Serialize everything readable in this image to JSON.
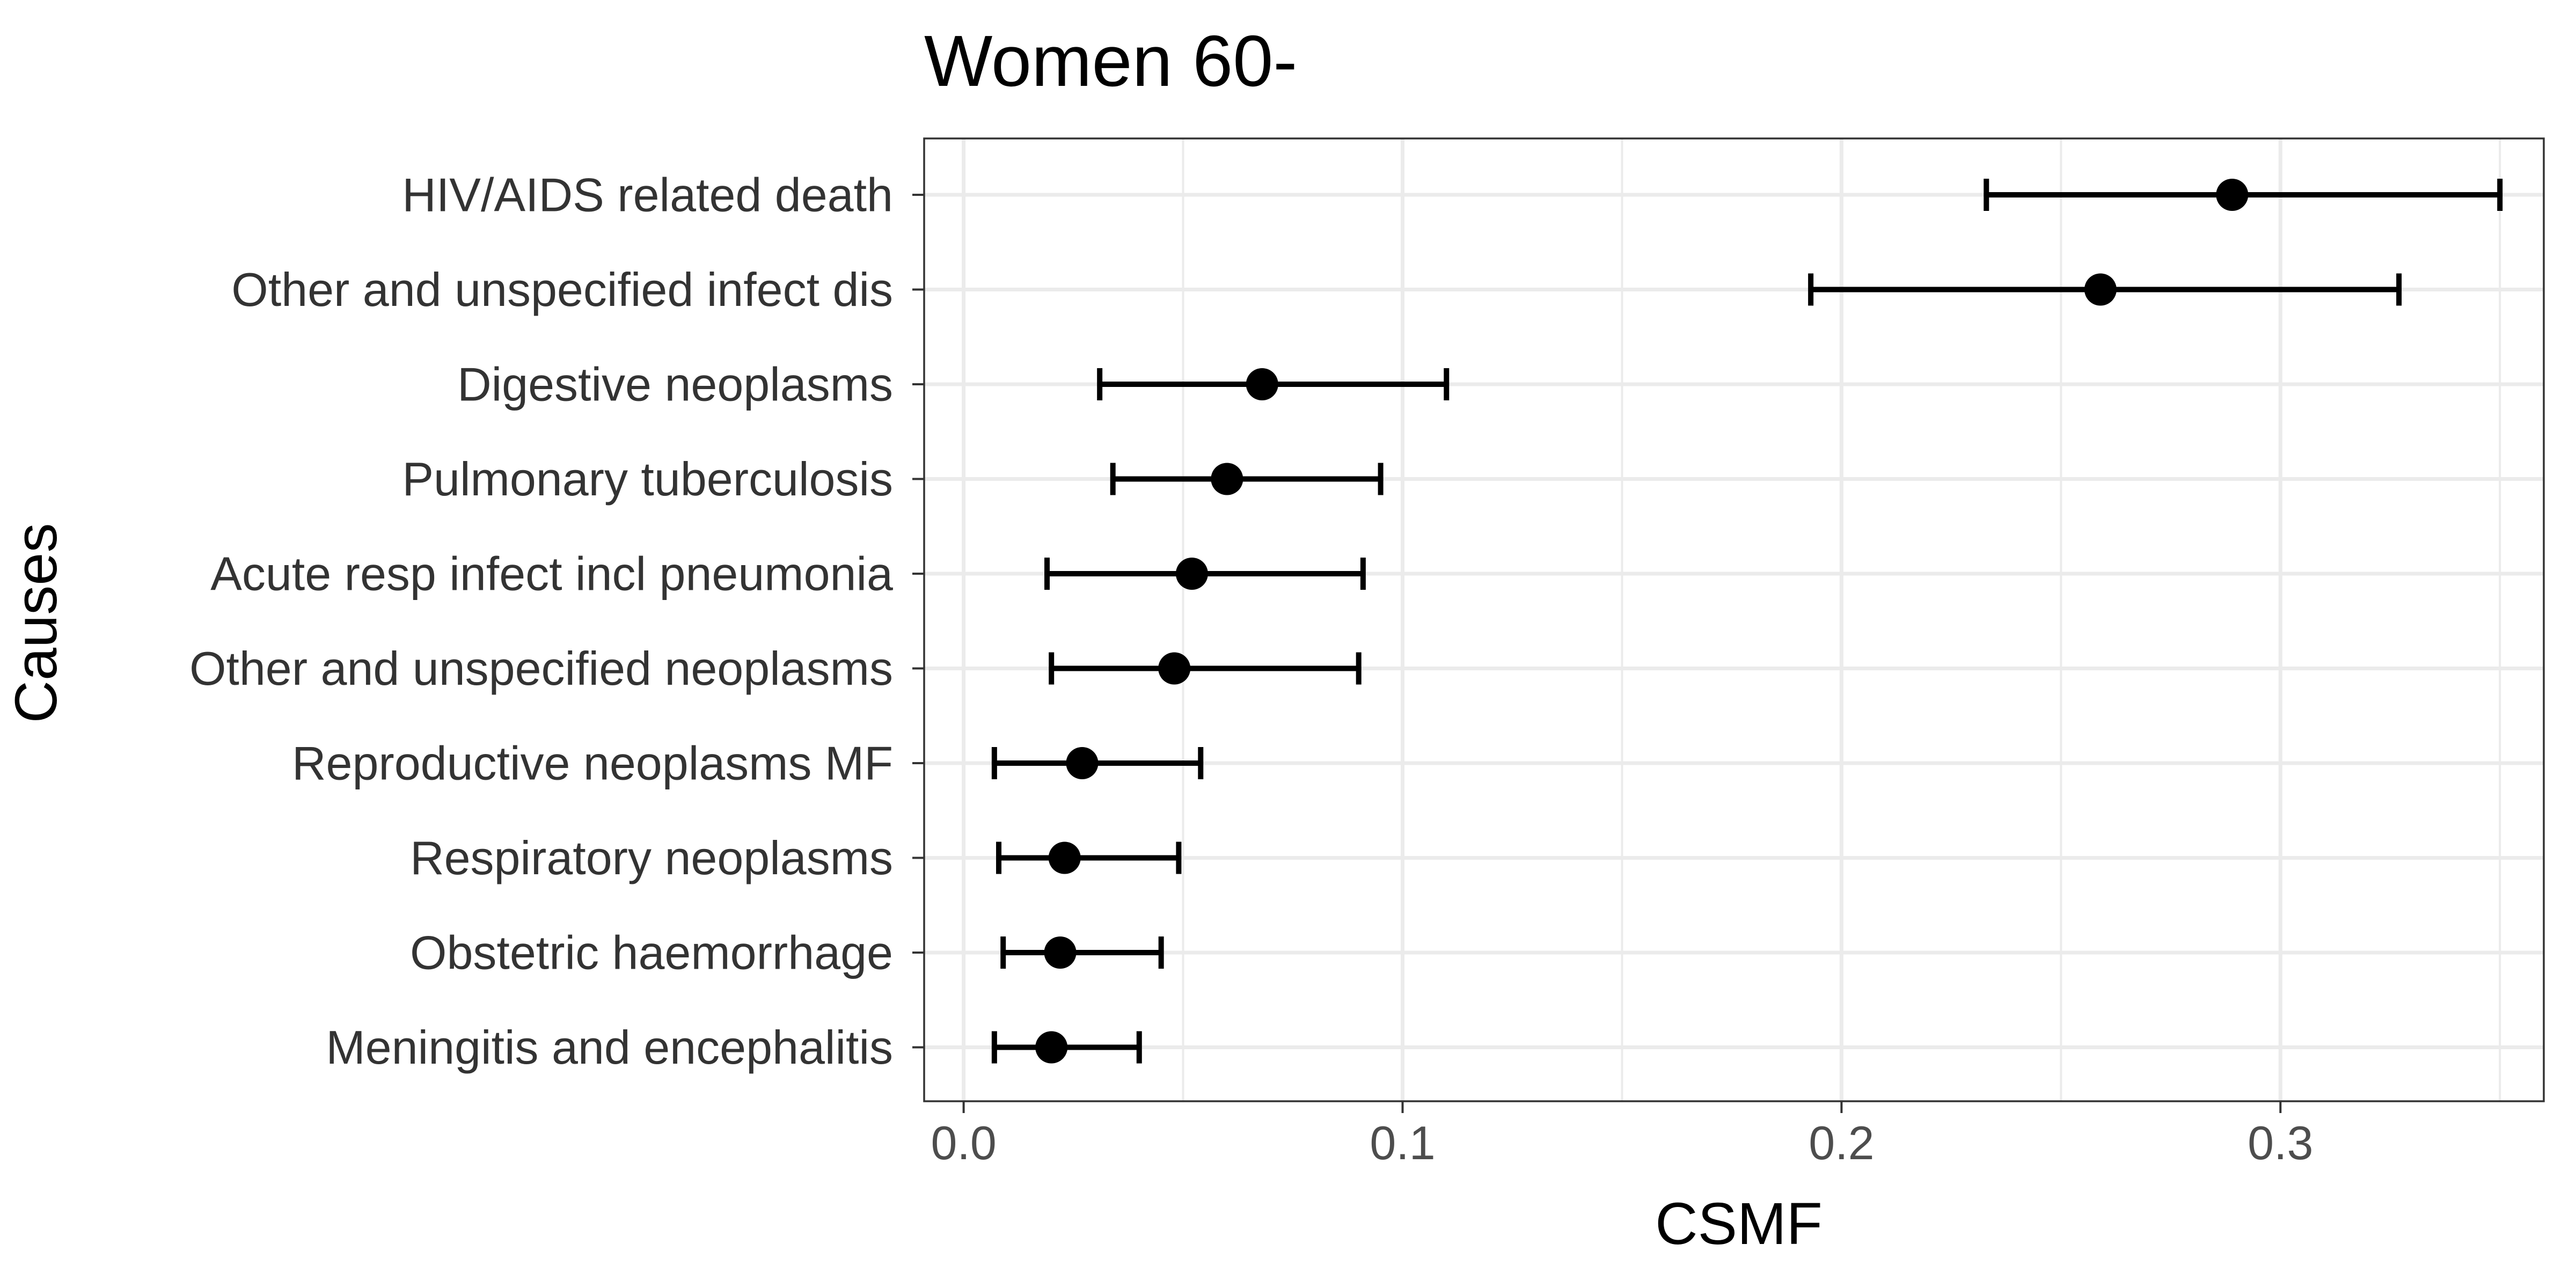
{
  "chart_data": {
    "type": "scatter",
    "subtype": "point-range",
    "title": "Women 60-",
    "xlabel": "CSMF",
    "ylabel": "Causes",
    "xlim": [
      -0.009,
      0.36
    ],
    "x_ticks": [
      {
        "value": 0.0,
        "label": "0.0"
      },
      {
        "value": 0.1,
        "label": "0.1"
      },
      {
        "value": 0.2,
        "label": "0.2"
      },
      {
        "value": 0.3,
        "label": "0.3"
      }
    ],
    "x_minor_grid": [
      0.05,
      0.15,
      0.25,
      0.35
    ],
    "grid": true,
    "theme": "bw",
    "point_color": "#000000",
    "grid_color": "#ebebeb",
    "categories": [
      "HIV/AIDS related death",
      "Other and unspecified infect dis",
      "Digestive neoplasms",
      "Pulmonary tuberculosis",
      "Acute resp infect incl pneumonia",
      "Other and unspecified neoplasms",
      "Reproductive neoplasms MF",
      "Respiratory neoplasms",
      "Obstetric haemorrhage",
      "Meningitis and encephalitis"
    ],
    "values": [
      0.289,
      0.259,
      0.068,
      0.06,
      0.052,
      0.048,
      0.027,
      0.023,
      0.022,
      0.02
    ],
    "lower": [
      0.233,
      0.193,
      0.031,
      0.034,
      0.019,
      0.02,
      0.007,
      0.008,
      0.009,
      0.007
    ],
    "upper": [
      0.35,
      0.327,
      0.11,
      0.095,
      0.091,
      0.09,
      0.054,
      0.049,
      0.045,
      0.04
    ]
  }
}
